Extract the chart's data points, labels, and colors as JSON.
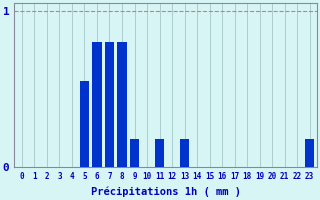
{
  "hours": [
    0,
    1,
    2,
    3,
    4,
    5,
    6,
    7,
    8,
    9,
    10,
    11,
    12,
    13,
    14,
    15,
    16,
    17,
    18,
    19,
    20,
    21,
    22,
    23
  ],
  "values": [
    0,
    0,
    0,
    0,
    0,
    0.55,
    0.8,
    0.8,
    0.8,
    0.18,
    0,
    0.18,
    0,
    0.18,
    0,
    0,
    0,
    0,
    0,
    0,
    0,
    0,
    0,
    0.18
  ],
  "bar_color": "#0033cc",
  "background_color": "#d8f5f5",
  "plot_background": "#d8f5f5",
  "grid_color_v": "#aacccc",
  "grid_color_h": "#ff9999",
  "axis_color": "#888899",
  "text_color": "#0000bb",
  "xlabel": "Précipitations 1h ( mm )",
  "ylim": [
    0,
    1.05
  ],
  "yticks": [
    0,
    1
  ],
  "hline_y": 1.0,
  "hline_color": "#ff6666",
  "hline_style": "--"
}
